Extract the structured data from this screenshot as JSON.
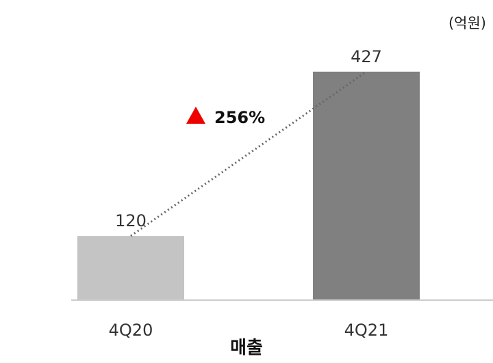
{
  "chart_data": {
    "type": "bar",
    "categories": [
      "4Q20",
      "4Q21"
    ],
    "values": [
      120,
      427
    ],
    "value_labels": [
      "120",
      "427"
    ],
    "bar_colors": [
      "#c4c4c4",
      "#808080"
    ],
    "unit": "(억원)",
    "xlabel": "매출",
    "ylabel": "",
    "ylim": [
      0,
      460
    ],
    "grid": false,
    "growth": {
      "label": "256%",
      "marker_color": "#ee0000"
    }
  }
}
